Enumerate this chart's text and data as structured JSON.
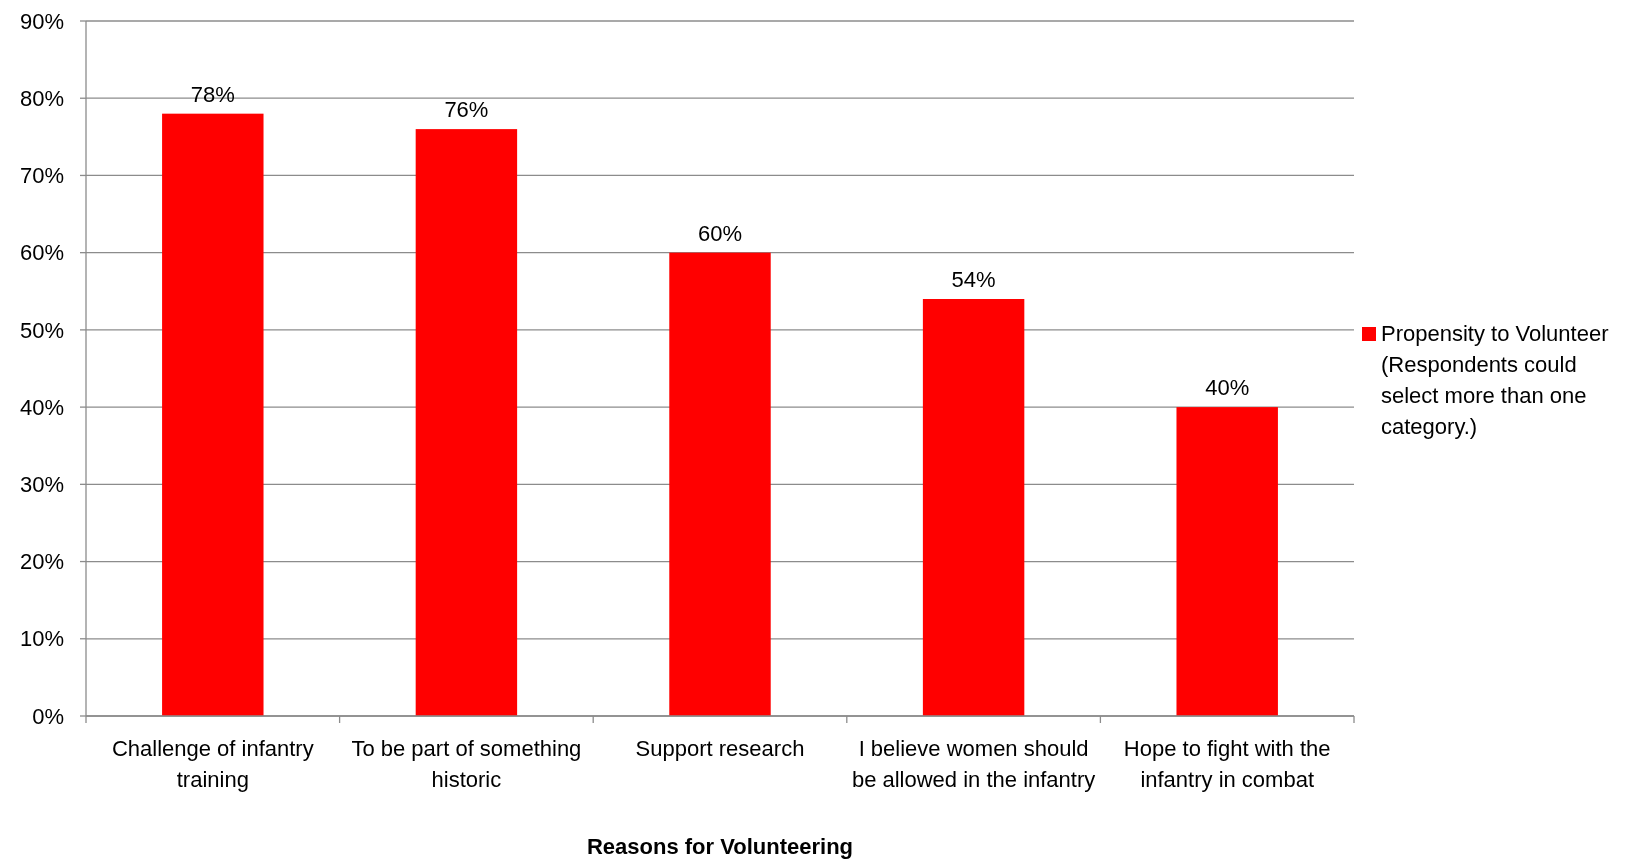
{
  "chart_data": {
    "type": "bar",
    "xlabel": "Reasons for Volunteering",
    "categories": [
      "Challenge of infantry training",
      "To be part of something historic",
      "Support research",
      "I believe women should be allowed in the infantry",
      "Hope to fight with the infantry in combat"
    ],
    "series": [
      {
        "name": "Propensity to Volunteer (Respondents could select more than one category.)",
        "color": "#ff0000",
        "values": [
          78,
          76,
          60,
          54,
          40
        ],
        "value_labels": [
          "78%",
          "76%",
          "60%",
          "54%",
          "40%"
        ]
      }
    ],
    "ylim": [
      0,
      90
    ],
    "yticks": [
      {
        "value": 0,
        "label": "0%"
      },
      {
        "value": 10,
        "label": "10%"
      },
      {
        "value": 20,
        "label": "20%"
      },
      {
        "value": 30,
        "label": "30%"
      },
      {
        "value": 40,
        "label": "40%"
      },
      {
        "value": 50,
        "label": "50%"
      },
      {
        "value": 60,
        "label": "60%"
      },
      {
        "value": 70,
        "label": "70%"
      },
      {
        "value": 80,
        "label": "80%"
      },
      {
        "value": 90,
        "label": "90%"
      }
    ],
    "grid": "y",
    "legend": "right"
  }
}
